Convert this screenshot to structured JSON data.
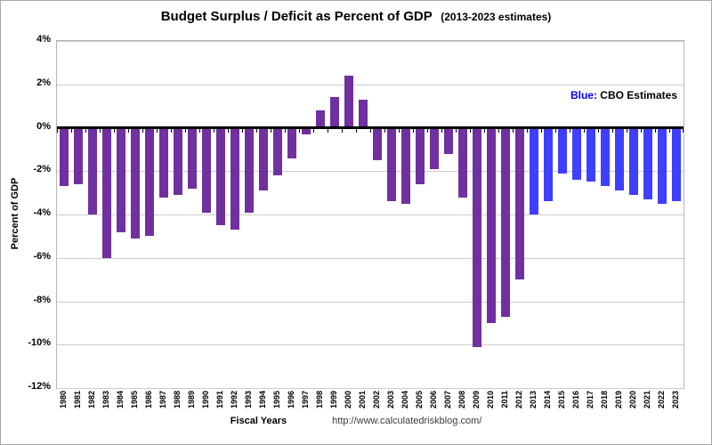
{
  "chart_data": {
    "type": "bar",
    "title": "Budget Surplus / Deficit as Percent of GDP",
    "subtitle": "(2013-2023 estimates)",
    "xlabel": "Fiscal Years",
    "ylabel": "Percent of GDP",
    "ylim": [
      -12,
      4
    ],
    "ytick_step": 2,
    "ytick_format": "percent",
    "grid": true,
    "legend_position": "top-right-inside",
    "categories": [
      "1980",
      "1981",
      "1982",
      "1983",
      "1984",
      "1985",
      "1986",
      "1987",
      "1988",
      "1989",
      "1990",
      "1991",
      "1992",
      "1993",
      "1994",
      "1995",
      "1996",
      "1997",
      "1998",
      "1999",
      "2000",
      "2001",
      "2002",
      "2003",
      "2004",
      "2005",
      "2006",
      "2007",
      "2008",
      "2009",
      "2010",
      "2011",
      "2012",
      "2013",
      "2014",
      "2015",
      "2016",
      "2017",
      "2018",
      "2019",
      "2020",
      "2021",
      "2022",
      "2023"
    ],
    "values": [
      -2.7,
      -2.6,
      -4.0,
      -6.0,
      -4.8,
      -5.1,
      -5.0,
      -3.2,
      -3.1,
      -2.8,
      -3.9,
      -4.5,
      -4.7,
      -3.9,
      -2.9,
      -2.2,
      -1.4,
      -0.3,
      0.8,
      1.4,
      2.4,
      1.3,
      -1.5,
      -3.4,
      -3.5,
      -2.6,
      -1.9,
      -1.2,
      -3.2,
      -10.1,
      -9.0,
      -8.7,
      -7.0,
      -4.0,
      -3.4,
      -2.1,
      -2.4,
      -2.5,
      -2.7,
      -2.9,
      -3.1,
      -3.3,
      -3.5,
      -3.4
    ],
    "estimate_from_index": 33,
    "colors": {
      "actual": "#7030A0",
      "estimate": "#3F3FFF",
      "zero_axis": "#000000",
      "gridline": "#cccccc"
    }
  },
  "legend": {
    "blue_label": "Blue:",
    "text": "CBO Estimates",
    "blue_color": "#0000FF"
  },
  "footer": {
    "source_url": "http://www.calculatedriskblog.com/"
  }
}
